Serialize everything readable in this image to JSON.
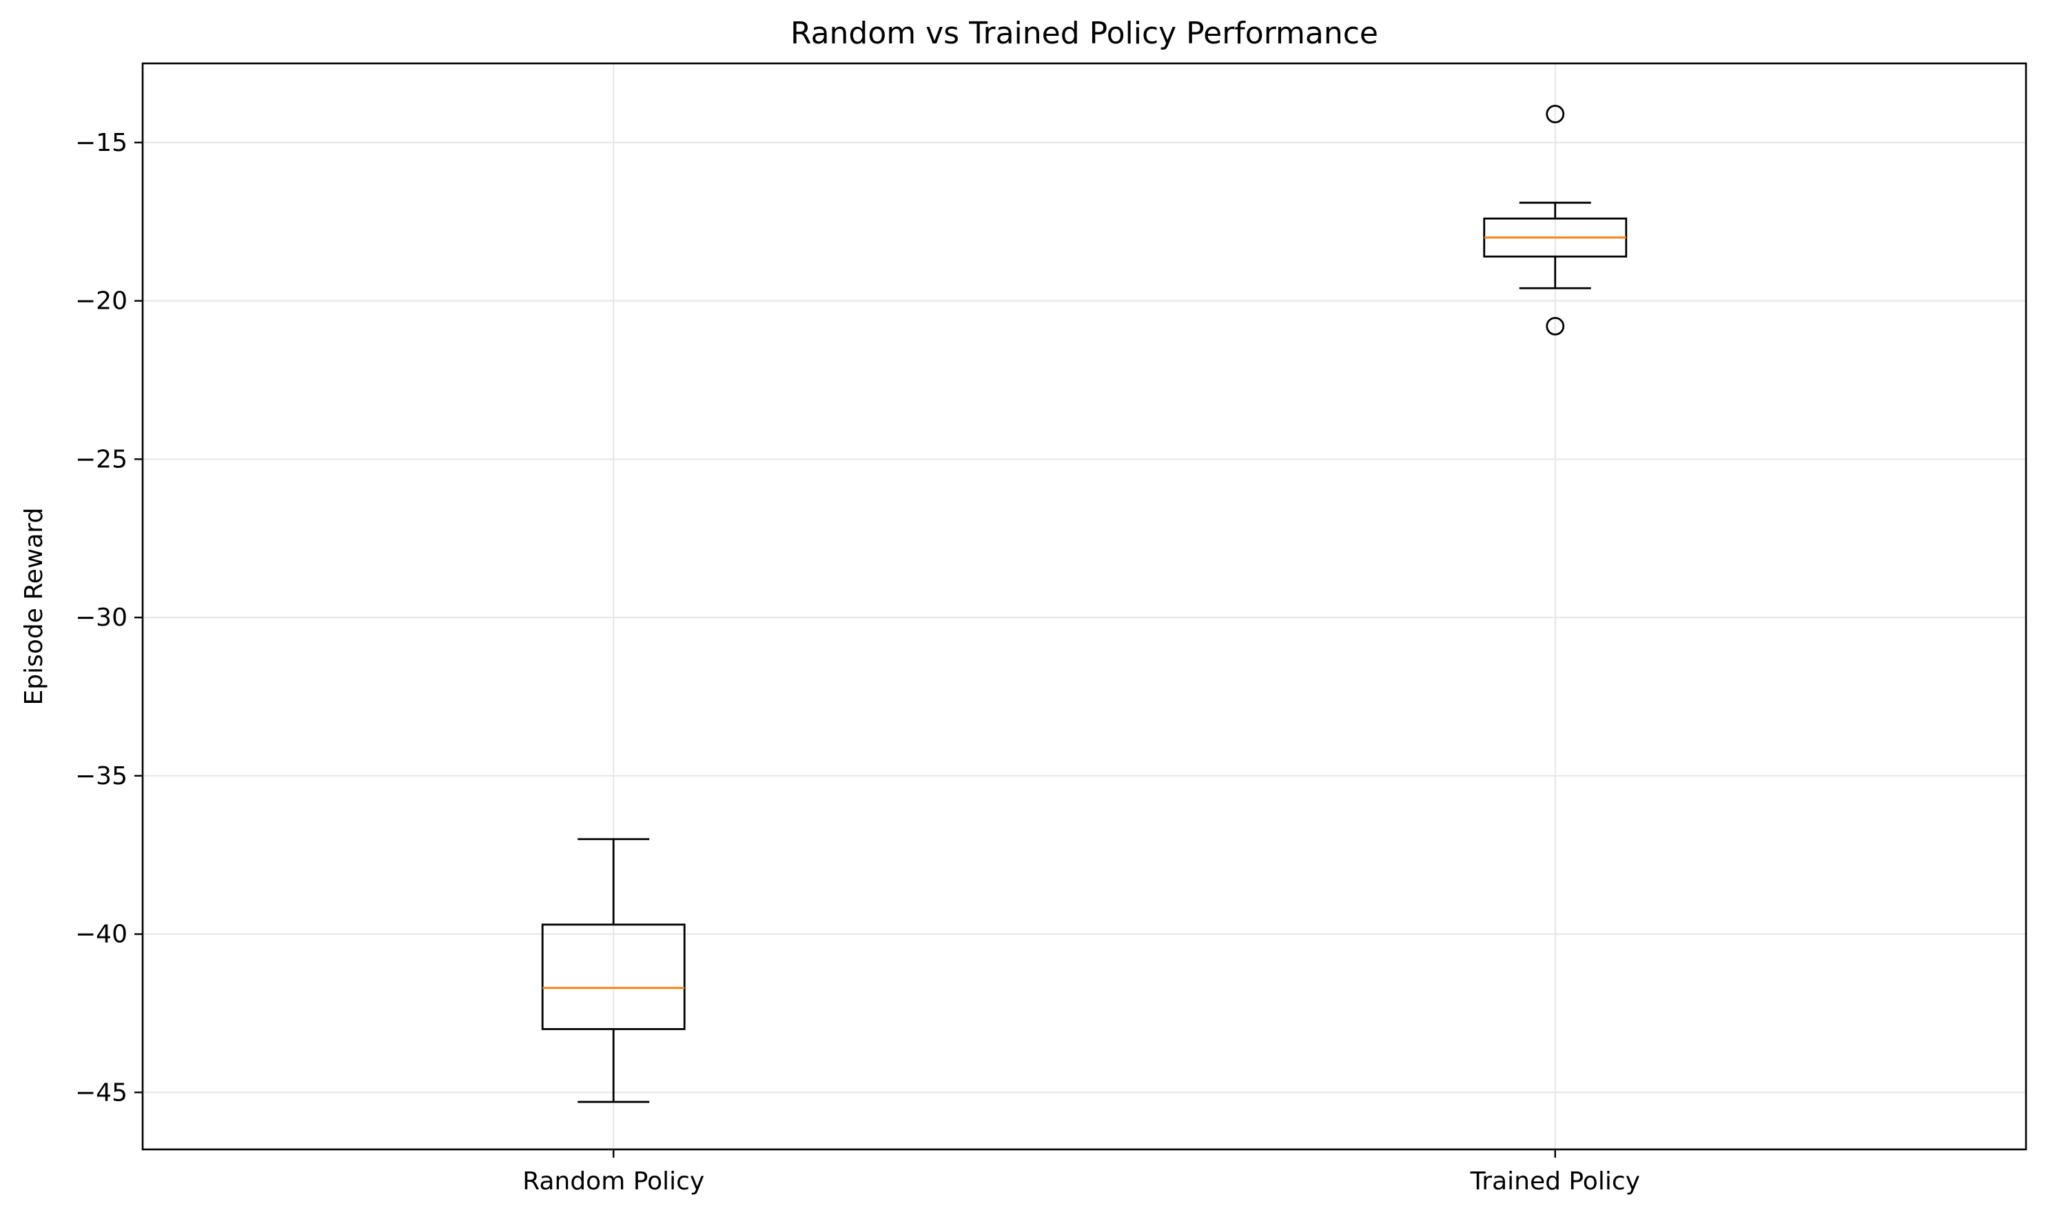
{
  "chart_data": {
    "type": "box",
    "title": "Random vs Trained Policy Performance",
    "xlabel": "",
    "ylabel": "Episode Reward",
    "ylim": [
      -46.8,
      -12.5
    ],
    "yticks": [
      -15,
      -20,
      -25,
      -30,
      -35,
      -40,
      -45
    ],
    "ytick_labels": [
      "−15",
      "−20",
      "−25",
      "−30",
      "−35",
      "−40",
      "−45"
    ],
    "categories": [
      "Random Policy",
      "Trained Policy"
    ],
    "grid": true,
    "colors": {
      "box": "#000000",
      "median": "#ff7f0e",
      "grid": "#e6e6e6"
    },
    "boxes": [
      {
        "label": "Random Policy",
        "whisker_low": -45.3,
        "q1": -43.0,
        "median": -41.7,
        "q3": -39.7,
        "whisker_high": -37.0,
        "outliers": []
      },
      {
        "label": "Trained Policy",
        "whisker_low": -19.6,
        "q1": -18.6,
        "median": -18.0,
        "q3": -17.4,
        "whisker_high": -16.9,
        "outliers": [
          -14.1,
          -20.8
        ]
      }
    ]
  }
}
